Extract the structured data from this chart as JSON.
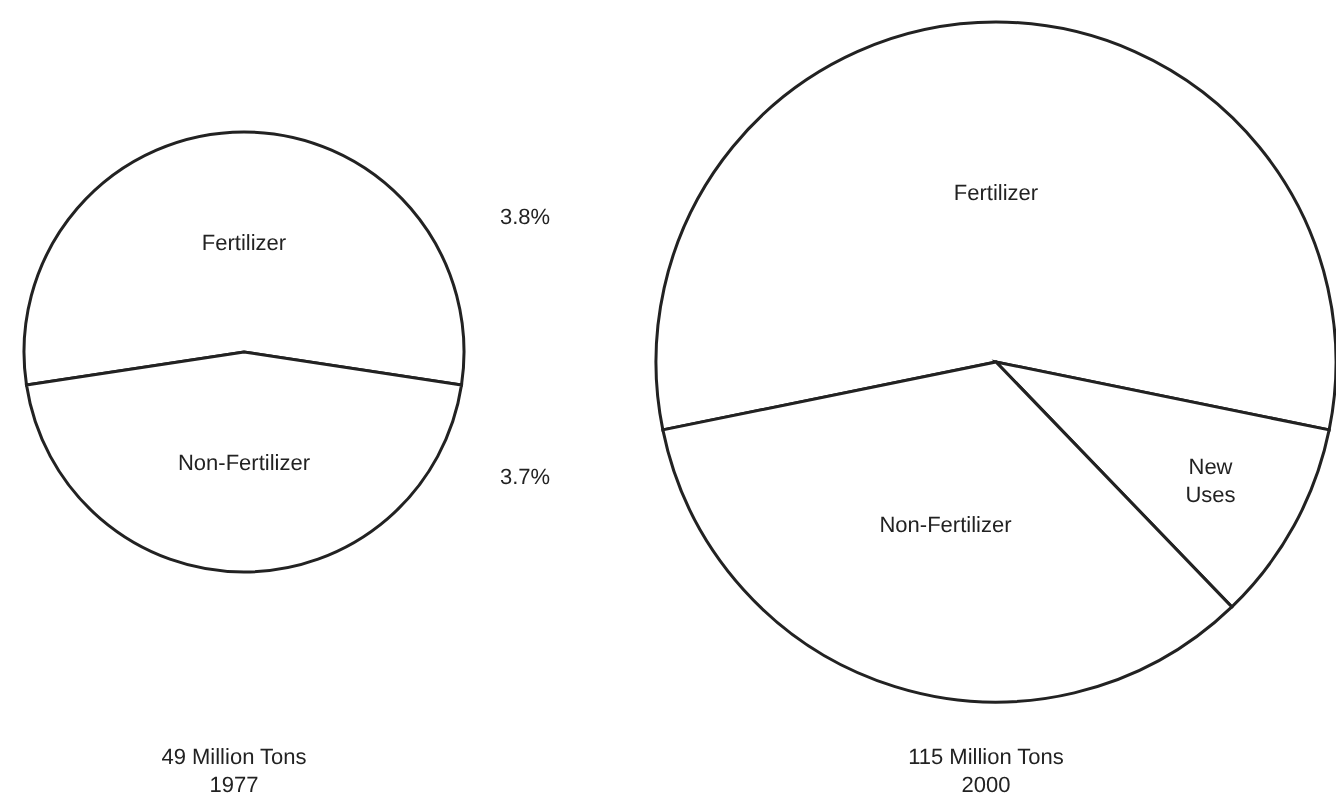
{
  "chart_data": [
    {
      "type": "pie",
      "title": "49 Million Tons",
      "subtitle": "1977",
      "categories": [
        "Fertilizer",
        "Non-Fertilizer"
      ],
      "values": [
        54.8,
        45.2
      ],
      "colors": [
        "#ffffff",
        "#ffffff"
      ],
      "annotations": [
        "3.8%",
        "3.7%"
      ]
    },
    {
      "type": "pie",
      "title": "115 Million Tons",
      "subtitle": "2000",
      "categories": [
        "Fertilizer",
        "New Uses",
        "Non-Fertilizer"
      ],
      "values": [
        56.4,
        9.6,
        34.0
      ],
      "colors": [
        "#ffffff",
        "#ffffff",
        "#ffffff"
      ]
    }
  ]
}
